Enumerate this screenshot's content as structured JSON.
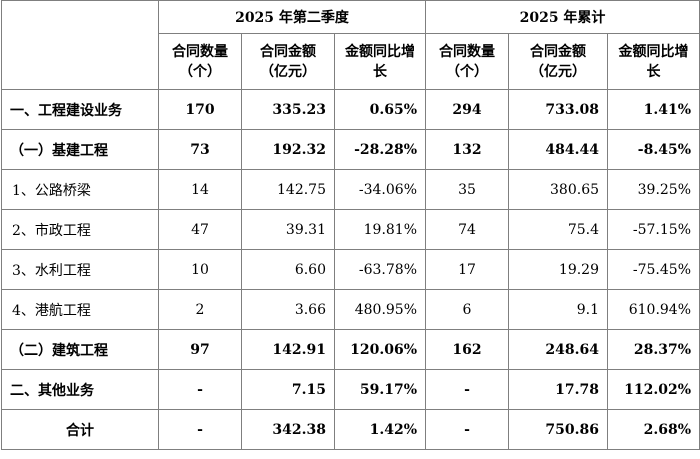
{
  "header": {
    "q2_title": "2025 年第二季度",
    "ytd_title": "2025 年累计",
    "q2_cols": [
      "合同数量（个）",
      "合同金额（亿元）",
      "金额同比增长"
    ],
    "ytd_cols": [
      "合同数量（个）",
      "合同金额（亿元）",
      "金额同比增长"
    ]
  },
  "rows": [
    {
      "name": "一、工程建设业务",
      "q2_count": "170",
      "q2_amount": "335.23",
      "q2_growth": "0.65%",
      "ytd_count": "294",
      "ytd_amount": "733.08",
      "ytd_growth": "1.41%"
    },
    {
      "name": "（一）基建工程",
      "q2_count": "73",
      "q2_amount": "192.32",
      "q2_growth": "-28.28%",
      "ytd_count": "132",
      "ytd_amount": "484.44",
      "ytd_growth": "-8.45%"
    },
    {
      "name": "1、公路桥梁",
      "q2_count": "14",
      "q2_amount": "142.75",
      "q2_growth": "-34.06%",
      "ytd_count": "35",
      "ytd_amount": "380.65",
      "ytd_growth": "39.25%"
    },
    {
      "name": "2、市政工程",
      "q2_count": "47",
      "q2_amount": "39.31",
      "q2_growth": "19.81%",
      "ytd_count": "74",
      "ytd_amount": "75.4",
      "ytd_growth": "-57.15%"
    },
    {
      "name": "3、水利工程",
      "q2_count": "10",
      "q2_amount": "6.60",
      "q2_growth": "-63.78%",
      "ytd_count": "17",
      "ytd_amount": "19.29",
      "ytd_growth": "-75.45%"
    },
    {
      "name": "4、港航工程",
      "q2_count": "2",
      "q2_amount": "3.66",
      "q2_growth": "480.95%",
      "ytd_count": "6",
      "ytd_amount": "9.1",
      "ytd_growth": "610.94%"
    },
    {
      "name": "（二）建筑工程",
      "q2_count": "97",
      "q2_amount": "142.91",
      "q2_growth": "120.06%",
      "ytd_count": "162",
      "ytd_amount": "248.64",
      "ytd_growth": "28.37%"
    },
    {
      "name": "二、其他业务",
      "q2_count": "-",
      "q2_amount": "7.15",
      "q2_growth": "59.17%",
      "ytd_count": "-",
      "ytd_amount": "17.78",
      "ytd_growth": "112.02%"
    },
    {
      "name": "合计",
      "q2_count": "-",
      "q2_amount": "342.38",
      "q2_growth": "1.42%",
      "ytd_count": "-",
      "ytd_amount": "750.86",
      "ytd_growth": "2.68%"
    }
  ]
}
